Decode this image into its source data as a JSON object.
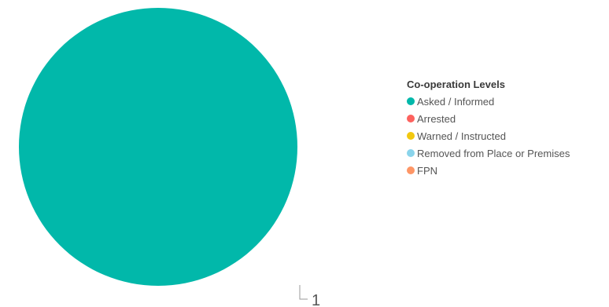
{
  "chart_data": {
    "type": "pie",
    "title": "",
    "legend_title": "Co-operation Levels",
    "legend_position": "right",
    "slices": [
      {
        "label": "Asked / Informed",
        "value": 1,
        "color": "#01B8AA"
      },
      {
        "label": "Arrested",
        "value": 0,
        "color": "#FD625E"
      },
      {
        "label": "Warned / Instructed",
        "value": 0,
        "color": "#F2C80F"
      },
      {
        "label": "Removed from Place or Premises",
        "value": 0,
        "color": "#8AD4EB"
      },
      {
        "label": "FPN",
        "value": 0,
        "color": "#FE9666"
      }
    ],
    "data_labels": [
      "1"
    ]
  }
}
